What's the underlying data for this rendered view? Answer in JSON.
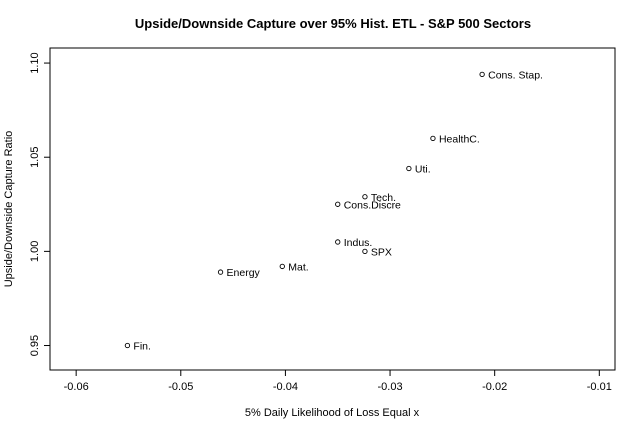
{
  "chart_data": {
    "type": "scatter",
    "title": "Upside/Downside Capture over 95% Hist. ETL - S&P 500 Sectors",
    "xlabel": "5% Daily Likelihood of Loss Equal x",
    "ylabel": "Upside/Downside Capture Ratio",
    "xlim": [
      -0.0625,
      -0.0085
    ],
    "ylim": [
      0.937,
      1.108
    ],
    "x_ticks": [
      -0.06,
      -0.05,
      -0.04,
      -0.03,
      -0.02,
      -0.01
    ],
    "x_tick_labels": [
      "-0.06",
      "-0.05",
      "-0.04",
      "-0.03",
      "-0.02",
      "-0.01"
    ],
    "y_ticks": [
      0.95,
      1.0,
      1.05,
      1.1
    ],
    "y_tick_labels": [
      "0.95",
      "1.00",
      "1.05",
      "1.10"
    ],
    "grid": false,
    "points": [
      {
        "label": "Cons. Stap.",
        "x": -0.0212,
        "y": 1.094
      },
      {
        "label": "HealthC.",
        "x": -0.0259,
        "y": 1.06
      },
      {
        "label": "Uti.",
        "x": -0.0282,
        "y": 1.044
      },
      {
        "label": "Tech.",
        "x": -0.0324,
        "y": 1.029
      },
      {
        "label": "Cons.Discre",
        "x": -0.035,
        "y": 1.025
      },
      {
        "label": "Indus.",
        "x": -0.035,
        "y": 1.005
      },
      {
        "label": "SPX",
        "x": -0.0324,
        "y": 1.0
      },
      {
        "label": "Mat.",
        "x": -0.0403,
        "y": 0.992
      },
      {
        "label": "Energy",
        "x": -0.0462,
        "y": 0.989
      },
      {
        "label": "Fin.",
        "x": -0.0551,
        "y": 0.95
      }
    ]
  }
}
